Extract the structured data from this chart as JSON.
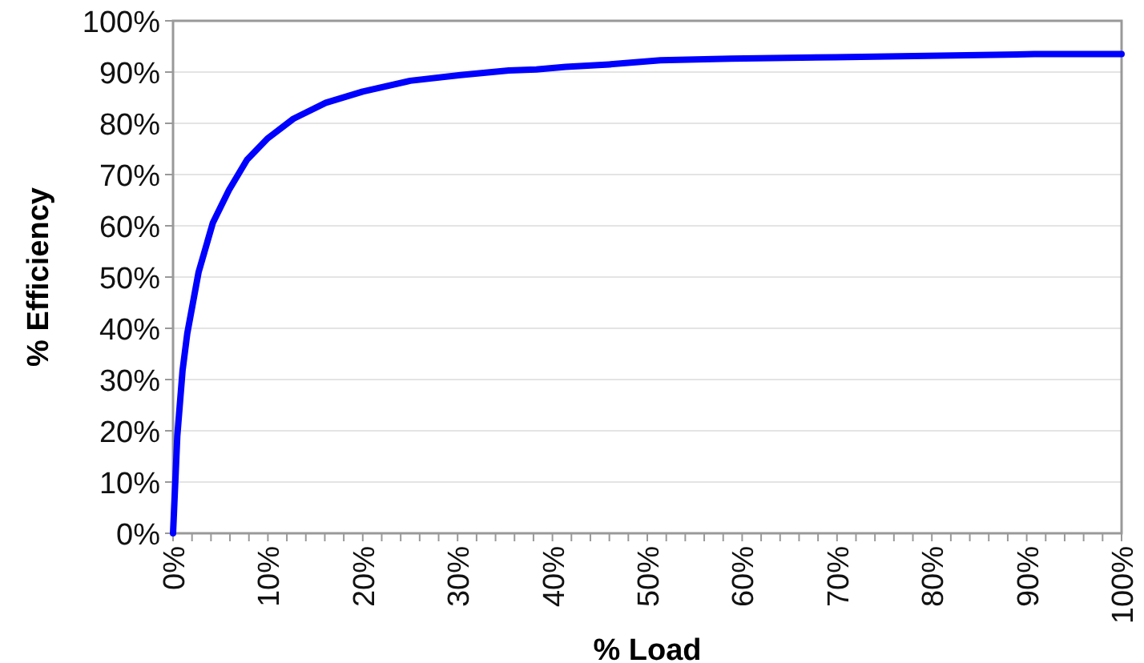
{
  "chart_data": {
    "type": "line",
    "xlabel": "% Load",
    "ylabel": "% Efficiency",
    "x": [
      0,
      0.45,
      1,
      1.5,
      2.7,
      4.2,
      5.9,
      7.8,
      10,
      12.7,
      16.1,
      20,
      25,
      30.3,
      35.4,
      38.3,
      41.4,
      46,
      51.4,
      58.8,
      69.8,
      90.8,
      100
    ],
    "series": [
      {
        "color": "#0000ff",
        "values": [
          0,
          19,
          31.7,
          39,
          51,
          60.6,
          67,
          72.9,
          77.1,
          80.9,
          84,
          86.2,
          88.3,
          89.4,
          90.3,
          90.5,
          91,
          91.5,
          92.3,
          92.6,
          92.9,
          93.5,
          93.5
        ]
      }
    ],
    "xlim": [
      0,
      100
    ],
    "ylim": [
      0,
      100
    ],
    "xticks": [
      {
        "value": 0,
        "label": "0%"
      },
      {
        "value": 2,
        "label": null
      },
      {
        "value": 4,
        "label": null
      },
      {
        "value": 6,
        "label": null
      },
      {
        "value": 8,
        "label": null
      },
      {
        "value": 10,
        "label": "10%"
      },
      {
        "value": 12,
        "label": null
      },
      {
        "value": 14,
        "label": null
      },
      {
        "value": 16,
        "label": null
      },
      {
        "value": 18,
        "label": null
      },
      {
        "value": 20,
        "label": "20%"
      },
      {
        "value": 22,
        "label": null
      },
      {
        "value": 24,
        "label": null
      },
      {
        "value": 26,
        "label": null
      },
      {
        "value": 28,
        "label": null
      },
      {
        "value": 30,
        "label": "30%"
      },
      {
        "value": 32,
        "label": null
      },
      {
        "value": 34,
        "label": null
      },
      {
        "value": 36,
        "label": null
      },
      {
        "value": 38,
        "label": null
      },
      {
        "value": 40,
        "label": "40%"
      },
      {
        "value": 42,
        "label": null
      },
      {
        "value": 44,
        "label": null
      },
      {
        "value": 46,
        "label": null
      },
      {
        "value": 48,
        "label": null
      },
      {
        "value": 50,
        "label": "50%"
      },
      {
        "value": 52,
        "label": null
      },
      {
        "value": 54,
        "label": null
      },
      {
        "value": 56,
        "label": null
      },
      {
        "value": 58,
        "label": null
      },
      {
        "value": 60,
        "label": "60%"
      },
      {
        "value": 62,
        "label": null
      },
      {
        "value": 64,
        "label": null
      },
      {
        "value": 66,
        "label": null
      },
      {
        "value": 68,
        "label": null
      },
      {
        "value": 70,
        "label": "70%"
      },
      {
        "value": 72,
        "label": null
      },
      {
        "value": 74,
        "label": null
      },
      {
        "value": 76,
        "label": null
      },
      {
        "value": 78,
        "label": null
      },
      {
        "value": 80,
        "label": "80%"
      },
      {
        "value": 82,
        "label": null
      },
      {
        "value": 84,
        "label": null
      },
      {
        "value": 86,
        "label": null
      },
      {
        "value": 88,
        "label": null
      },
      {
        "value": 90,
        "label": "90%"
      },
      {
        "value": 92,
        "label": null
      },
      {
        "value": 94,
        "label": null
      },
      {
        "value": 96,
        "label": null
      },
      {
        "value": 98,
        "label": null
      },
      {
        "value": 100,
        "label": "100%"
      }
    ],
    "yticks": [
      {
        "value": 0,
        "label": "0%"
      },
      {
        "value": 10,
        "label": "10%"
      },
      {
        "value": 20,
        "label": "20%"
      },
      {
        "value": 30,
        "label": "30%"
      },
      {
        "value": 40,
        "label": "40%"
      },
      {
        "value": 50,
        "label": "50%"
      },
      {
        "value": 60,
        "label": "60%"
      },
      {
        "value": 70,
        "label": "70%"
      },
      {
        "value": 80,
        "label": "80%"
      },
      {
        "value": 90,
        "label": "90%"
      },
      {
        "value": 100,
        "label": "100%"
      }
    ],
    "grid": "y",
    "marker": "none",
    "line_style": "solid"
  }
}
